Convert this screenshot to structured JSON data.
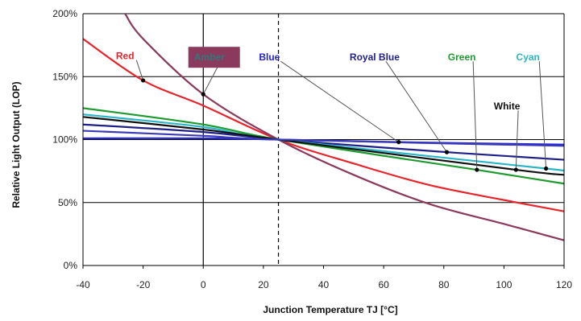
{
  "chart_data": {
    "type": "line",
    "title": "",
    "xlabel": "Junction Temperature TJ [°C]",
    "ylabel": "Relative Light Output (LOP)",
    "xlim": [
      -40,
      120
    ],
    "ylim": [
      0,
      200
    ],
    "x_ticks": [
      "-40",
      "-20",
      "0",
      "20",
      "40",
      "60",
      "80",
      "100",
      "120"
    ],
    "y_ticks": [
      "0%",
      "50%",
      "100%",
      "150%",
      "200%"
    ],
    "y_tick_values": [
      0,
      50,
      100,
      150,
      200
    ],
    "x_tick_values": [
      -40,
      -20,
      0,
      20,
      40,
      60,
      80,
      100,
      120
    ],
    "grid": "horizontal at 50%, 100%, 150%, 200%",
    "reference_lines": [
      {
        "x": 0,
        "style": "solid"
      },
      {
        "x": 25,
        "style": "dashed"
      }
    ],
    "series": [
      {
        "name": "Red",
        "color": "#e8232a",
        "points": [
          [
            -40,
            180
          ],
          [
            -20,
            147
          ],
          [
            0,
            127
          ],
          [
            25,
            100
          ],
          [
            50,
            81
          ],
          [
            75,
            64
          ],
          [
            100,
            52
          ],
          [
            120,
            43
          ]
        ]
      },
      {
        "name": "Amber",
        "color": "#8b3a5e",
        "points": [
          [
            -26,
            200
          ],
          [
            -20,
            180
          ],
          [
            0,
            136
          ],
          [
            25,
            100
          ],
          [
            50,
            72
          ],
          [
            75,
            49
          ],
          [
            100,
            33
          ],
          [
            120,
            20
          ]
        ]
      },
      {
        "name": "Blue",
        "color": "#2424d8",
        "points": [
          [
            -40,
            101
          ],
          [
            0,
            101
          ],
          [
            25,
            100
          ],
          [
            65,
            98
          ],
          [
            120,
            96
          ]
        ]
      },
      {
        "name": "Royal Blue",
        "color": "#1f1f8a",
        "points": [
          [
            -40,
            112
          ],
          [
            0,
            106
          ],
          [
            25,
            100
          ],
          [
            81,
            90
          ],
          [
            120,
            84
          ]
        ]
      },
      {
        "name": "Green",
        "color": "#1e9a2e",
        "points": [
          [
            -40,
            125
          ],
          [
            0,
            112
          ],
          [
            25,
            100
          ],
          [
            91,
            76
          ],
          [
            120,
            65
          ]
        ]
      },
      {
        "name": "Cyan",
        "color": "#29b6c8",
        "points": [
          [
            -40,
            120
          ],
          [
            0,
            110
          ],
          [
            25,
            100
          ],
          [
            114,
            77
          ],
          [
            120,
            75
          ]
        ]
      },
      {
        "name": "White",
        "color": "#111111",
        "points": [
          [
            -40,
            118
          ],
          [
            0,
            108
          ],
          [
            25,
            100
          ],
          [
            104,
            76
          ],
          [
            120,
            72
          ]
        ]
      },
      {
        "name": "",
        "color": "#3a3ab8",
        "points": [
          [
            -40,
            107
          ],
          [
            0,
            103
          ],
          [
            25,
            100
          ],
          [
            120,
            95
          ]
        ]
      }
    ],
    "annotations": [
      {
        "label": "Red",
        "color": "#e8232a",
        "anchor": [
          -20,
          147
        ],
        "label_at": [
          -26,
          167
        ],
        "box": false
      },
      {
        "label": "Amber",
        "color": "#2d7a7a",
        "anchor": [
          0,
          136
        ],
        "label_at": [
          2,
          166
        ],
        "box": true,
        "box_color": "#8b3a5e"
      },
      {
        "label": "Blue",
        "color": "#2424d8",
        "anchor": [
          65,
          98
        ],
        "label_at": [
          22,
          166
        ],
        "box": false
      },
      {
        "label": "Royal Blue",
        "color": "#1f1f8a",
        "anchor": [
          81,
          90
        ],
        "label_at": [
          57,
          166
        ],
        "box": false
      },
      {
        "label": "Green",
        "color": "#1e9a2e",
        "anchor": [
          91,
          76
        ],
        "label_at": [
          86,
          166
        ],
        "box": false
      },
      {
        "label": "Cyan",
        "color": "#29b6c8",
        "anchor": [
          114,
          77
        ],
        "label_at": [
          108,
          166
        ],
        "box": false
      },
      {
        "label": "White",
        "color": "#111111",
        "anchor": [
          104,
          76
        ],
        "label_at": [
          101,
          127
        ],
        "box": false
      }
    ]
  }
}
